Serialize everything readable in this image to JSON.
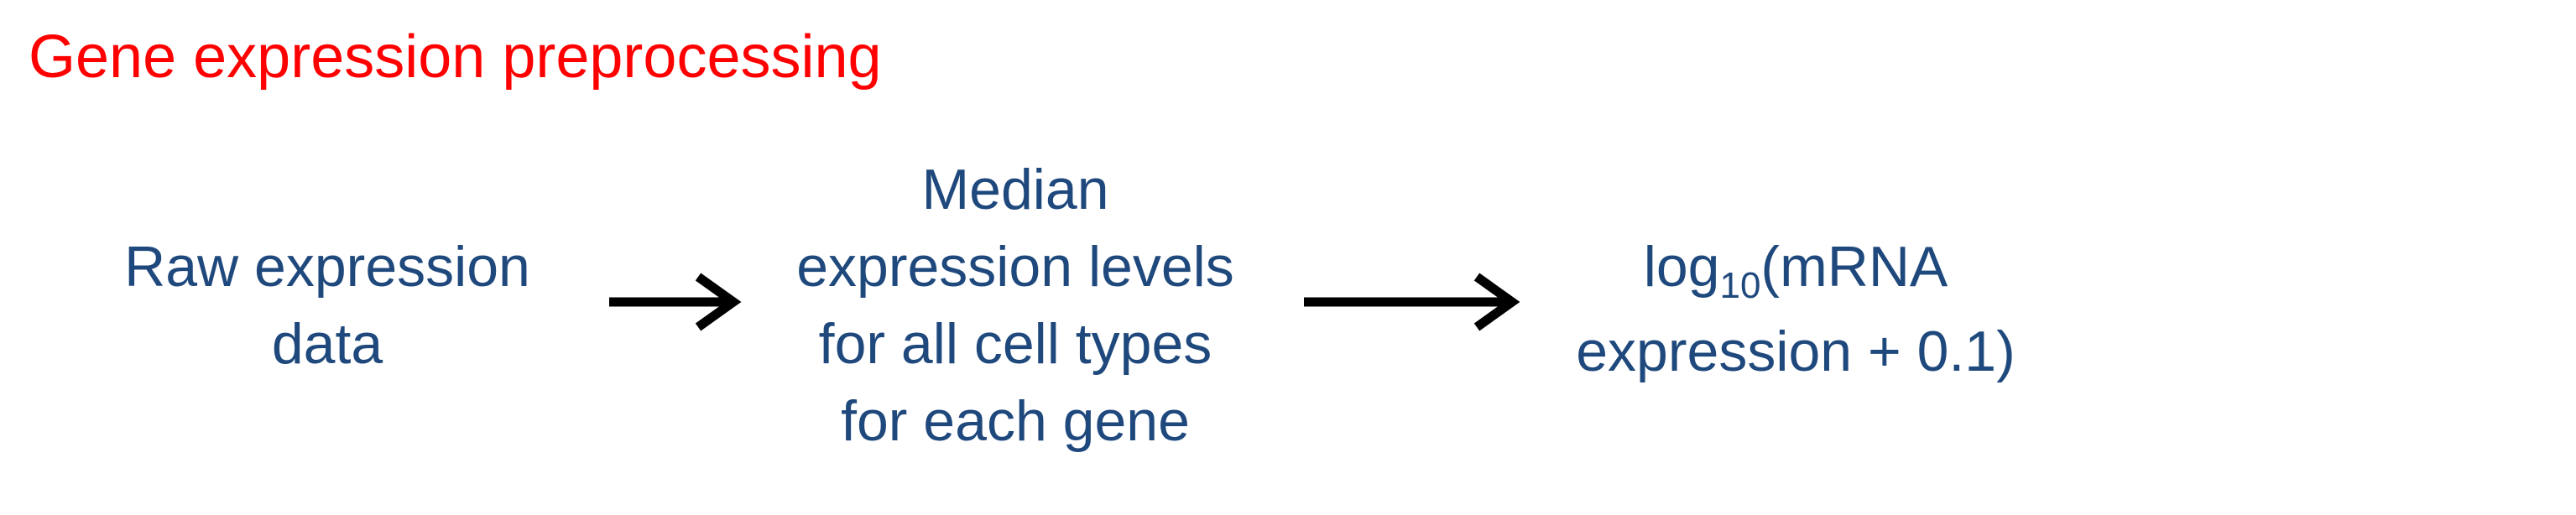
{
  "title": "Gene expression preprocessing",
  "colors": {
    "title": "#ff0000",
    "step_text": "#1f497d",
    "arrow": "#000000"
  },
  "steps": [
    {
      "lines": [
        "Raw expression",
        "data"
      ]
    },
    {
      "lines": [
        "Median",
        "expression levels",
        "for all cell types",
        "for each gene"
      ]
    },
    {
      "formula": {
        "prefix": "log",
        "subscript": "10",
        "suffix": "(mRNA",
        "line2": "expression + 0.1)"
      }
    }
  ],
  "arrows": [
    "right-arrow",
    "right-arrow"
  ]
}
